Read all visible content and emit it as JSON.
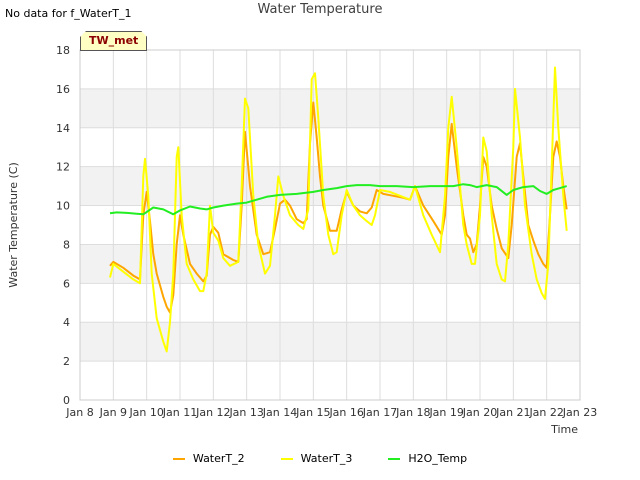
{
  "header": {
    "no_data_text": "No data for f_WaterT_1",
    "title": "Water Temperature",
    "badge": "TW_met"
  },
  "chart_data": {
    "type": "line",
    "title": "Water Temperature",
    "xlabel": "Time",
    "ylabel": "Water Temperature (C)",
    "ylim": [
      0,
      18
    ],
    "xlim": [
      8,
      23
    ],
    "x_ticks": [
      8,
      9,
      10,
      11,
      12,
      13,
      14,
      15,
      16,
      17,
      18,
      19,
      20,
      21,
      22,
      23
    ],
    "x_tick_labels": [
      "Jan 8",
      "Jan 9",
      "Jan 10",
      "Jan 11",
      "Jan 12",
      "Jan 13",
      "Jan 14",
      "Jan 15",
      "Jan 16",
      "Jan 17",
      "Jan 18",
      "Jan 19",
      "Jan 20",
      "Jan 21",
      "Jan 22",
      "Jan 23"
    ],
    "y_ticks": [
      0,
      2,
      4,
      6,
      8,
      10,
      12,
      14,
      16,
      18
    ],
    "grid": true,
    "legend_position": "bottom",
    "series": [
      {
        "name": "WaterT_2",
        "color": "#ffa500",
        "points": [
          [
            8.9,
            6.9
          ],
          [
            9.0,
            7.1
          ],
          [
            9.3,
            6.8
          ],
          [
            9.6,
            6.4
          ],
          [
            9.8,
            6.2
          ],
          [
            9.9,
            9.5
          ],
          [
            10.0,
            10.7
          ],
          [
            10.1,
            9.2
          ],
          [
            10.2,
            7.5
          ],
          [
            10.3,
            6.5
          ],
          [
            10.5,
            5.3
          ],
          [
            10.6,
            4.8
          ],
          [
            10.7,
            4.5
          ],
          [
            10.8,
            5.4
          ],
          [
            10.9,
            8.0
          ],
          [
            11.0,
            9.5
          ],
          [
            11.1,
            8.5
          ],
          [
            11.3,
            7.0
          ],
          [
            11.5,
            6.5
          ],
          [
            11.7,
            6.1
          ],
          [
            11.8,
            6.4
          ],
          [
            11.9,
            8.5
          ],
          [
            12.0,
            8.9
          ],
          [
            12.15,
            8.6
          ],
          [
            12.3,
            7.5
          ],
          [
            12.6,
            7.2
          ],
          [
            12.75,
            7.1
          ],
          [
            12.85,
            10.0
          ],
          [
            12.95,
            13.8
          ],
          [
            13.1,
            11.0
          ],
          [
            13.3,
            8.5
          ],
          [
            13.5,
            7.5
          ],
          [
            13.7,
            7.6
          ],
          [
            13.85,
            8.8
          ],
          [
            14.0,
            10.1
          ],
          [
            14.15,
            10.3
          ],
          [
            14.3,
            10.0
          ],
          [
            14.5,
            9.3
          ],
          [
            14.7,
            9.1
          ],
          [
            14.8,
            9.3
          ],
          [
            14.9,
            13.2
          ],
          [
            15.0,
            15.3
          ],
          [
            15.1,
            13.5
          ],
          [
            15.2,
            11.5
          ],
          [
            15.3,
            10.0
          ],
          [
            15.5,
            8.7
          ],
          [
            15.7,
            8.7
          ],
          [
            15.85,
            9.8
          ],
          [
            16.0,
            10.7
          ],
          [
            16.2,
            10.0
          ],
          [
            16.4,
            9.7
          ],
          [
            16.6,
            9.6
          ],
          [
            16.75,
            9.9
          ],
          [
            16.9,
            10.8
          ],
          [
            17.1,
            10.6
          ],
          [
            17.4,
            10.5
          ],
          [
            17.7,
            10.4
          ],
          [
            17.9,
            10.3
          ],
          [
            18.05,
            11.0
          ],
          [
            18.3,
            10.0
          ],
          [
            18.6,
            9.2
          ],
          [
            18.85,
            8.5
          ],
          [
            18.95,
            9.5
          ],
          [
            19.05,
            12.5
          ],
          [
            19.15,
            14.2
          ],
          [
            19.3,
            12.0
          ],
          [
            19.5,
            9.5
          ],
          [
            19.6,
            8.5
          ],
          [
            19.7,
            8.3
          ],
          [
            19.8,
            7.6
          ],
          [
            19.9,
            8.0
          ],
          [
            20.0,
            10.0
          ],
          [
            20.1,
            12.5
          ],
          [
            20.2,
            12.0
          ],
          [
            20.35,
            10.0
          ],
          [
            20.5,
            8.8
          ],
          [
            20.65,
            7.8
          ],
          [
            20.85,
            7.3
          ],
          [
            20.95,
            9.0
          ],
          [
            21.1,
            12.5
          ],
          [
            21.2,
            13.2
          ],
          [
            21.3,
            11.5
          ],
          [
            21.45,
            9.0
          ],
          [
            21.6,
            8.2
          ],
          [
            21.75,
            7.5
          ],
          [
            21.9,
            7.0
          ],
          [
            22.0,
            6.8
          ],
          [
            22.1,
            9.5
          ],
          [
            22.2,
            12.5
          ],
          [
            22.3,
            13.3
          ],
          [
            22.4,
            12.5
          ],
          [
            22.5,
            11.0
          ],
          [
            22.6,
            9.8
          ]
        ]
      },
      {
        "name": "WaterT_3",
        "color": "#ffff00",
        "points": [
          [
            8.9,
            6.3
          ],
          [
            9.0,
            7.0
          ],
          [
            9.3,
            6.6
          ],
          [
            9.6,
            6.2
          ],
          [
            9.8,
            6.0
          ],
          [
            9.9,
            11.5
          ],
          [
            9.95,
            12.4
          ],
          [
            10.05,
            10.5
          ],
          [
            10.15,
            6.5
          ],
          [
            10.3,
            4.2
          ],
          [
            10.5,
            3.0
          ],
          [
            10.6,
            2.5
          ],
          [
            10.7,
            4.0
          ],
          [
            10.8,
            6.5
          ],
          [
            10.9,
            12.5
          ],
          [
            10.95,
            13.0
          ],
          [
            11.05,
            9.5
          ],
          [
            11.2,
            7.0
          ],
          [
            11.4,
            6.2
          ],
          [
            11.6,
            5.6
          ],
          [
            11.7,
            5.6
          ],
          [
            11.8,
            6.5
          ],
          [
            11.9,
            10.0
          ],
          [
            12.0,
            8.6
          ],
          [
            12.15,
            8.2
          ],
          [
            12.3,
            7.3
          ],
          [
            12.5,
            6.9
          ],
          [
            12.75,
            7.1
          ],
          [
            12.85,
            11.0
          ],
          [
            12.95,
            15.5
          ],
          [
            13.05,
            15.0
          ],
          [
            13.2,
            10.5
          ],
          [
            13.35,
            8.0
          ],
          [
            13.55,
            6.5
          ],
          [
            13.7,
            6.9
          ],
          [
            13.85,
            9.5
          ],
          [
            13.95,
            11.5
          ],
          [
            14.1,
            10.5
          ],
          [
            14.3,
            9.5
          ],
          [
            14.55,
            9.0
          ],
          [
            14.7,
            8.8
          ],
          [
            14.85,
            9.8
          ],
          [
            14.95,
            16.5
          ],
          [
            15.05,
            16.8
          ],
          [
            15.15,
            14.5
          ],
          [
            15.3,
            10.5
          ],
          [
            15.45,
            8.5
          ],
          [
            15.6,
            7.5
          ],
          [
            15.7,
            7.6
          ],
          [
            15.85,
            9.5
          ],
          [
            16.0,
            10.8
          ],
          [
            16.2,
            10.0
          ],
          [
            16.4,
            9.5
          ],
          [
            16.6,
            9.2
          ],
          [
            16.75,
            9.0
          ],
          [
            16.85,
            9.5
          ],
          [
            17.0,
            10.8
          ],
          [
            17.3,
            10.7
          ],
          [
            17.6,
            10.5
          ],
          [
            17.9,
            10.3
          ],
          [
            18.05,
            11.0
          ],
          [
            18.3,
            9.5
          ],
          [
            18.55,
            8.5
          ],
          [
            18.8,
            7.6
          ],
          [
            18.95,
            10.5
          ],
          [
            19.05,
            14.0
          ],
          [
            19.15,
            15.6
          ],
          [
            19.3,
            13.0
          ],
          [
            19.5,
            9.0
          ],
          [
            19.6,
            8.0
          ],
          [
            19.75,
            7.0
          ],
          [
            19.85,
            7.0
          ],
          [
            20.0,
            9.5
          ],
          [
            20.1,
            13.5
          ],
          [
            20.2,
            12.8
          ],
          [
            20.35,
            9.5
          ],
          [
            20.5,
            7.0
          ],
          [
            20.65,
            6.2
          ],
          [
            20.75,
            6.1
          ],
          [
            20.85,
            8.0
          ],
          [
            21.0,
            13.0
          ],
          [
            21.05,
            16.0
          ],
          [
            21.2,
            13.5
          ],
          [
            21.35,
            10.0
          ],
          [
            21.55,
            7.5
          ],
          [
            21.7,
            6.2
          ],
          [
            21.85,
            5.5
          ],
          [
            21.95,
            5.2
          ],
          [
            22.05,
            7.0
          ],
          [
            22.15,
            12.0
          ],
          [
            22.25,
            17.1
          ],
          [
            22.35,
            14.0
          ],
          [
            22.5,
            10.5
          ],
          [
            22.6,
            8.7
          ]
        ]
      },
      {
        "name": "H2O_Temp",
        "color": "#22ee22",
        "points": [
          [
            8.9,
            9.6
          ],
          [
            9.1,
            9.65
          ],
          [
            9.4,
            9.62
          ],
          [
            9.7,
            9.58
          ],
          [
            9.9,
            9.55
          ],
          [
            10.2,
            9.9
          ],
          [
            10.5,
            9.8
          ],
          [
            10.8,
            9.55
          ],
          [
            11.0,
            9.75
          ],
          [
            11.3,
            9.95
          ],
          [
            11.6,
            9.85
          ],
          [
            11.8,
            9.8
          ],
          [
            12.0,
            9.9
          ],
          [
            12.3,
            10.0
          ],
          [
            12.7,
            10.1
          ],
          [
            13.0,
            10.15
          ],
          [
            13.3,
            10.3
          ],
          [
            13.6,
            10.45
          ],
          [
            14.0,
            10.55
          ],
          [
            14.5,
            10.6
          ],
          [
            15.0,
            10.7
          ],
          [
            15.3,
            10.8
          ],
          [
            15.7,
            10.9
          ],
          [
            16.0,
            11.0
          ],
          [
            16.3,
            11.05
          ],
          [
            16.7,
            11.05
          ],
          [
            17.0,
            11.0
          ],
          [
            17.5,
            11.0
          ],
          [
            18.0,
            10.95
          ],
          [
            18.5,
            11.0
          ],
          [
            18.9,
            11.0
          ],
          [
            19.2,
            11.0
          ],
          [
            19.5,
            11.1
          ],
          [
            19.7,
            11.05
          ],
          [
            19.9,
            10.95
          ],
          [
            20.2,
            11.05
          ],
          [
            20.5,
            10.95
          ],
          [
            20.8,
            10.55
          ],
          [
            21.0,
            10.8
          ],
          [
            21.3,
            10.95
          ],
          [
            21.6,
            11.0
          ],
          [
            21.8,
            10.75
          ],
          [
            22.0,
            10.6
          ],
          [
            22.2,
            10.8
          ],
          [
            22.4,
            10.9
          ],
          [
            22.6,
            11.0
          ]
        ]
      }
    ]
  }
}
